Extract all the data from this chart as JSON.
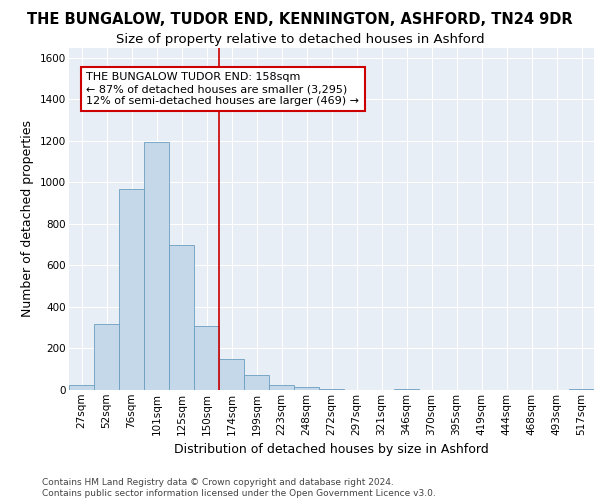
{
  "title_line1": "THE BUNGALOW, TUDOR END, KENNINGTON, ASHFORD, TN24 9DR",
  "title_line2": "Size of property relative to detached houses in Ashford",
  "xlabel": "Distribution of detached houses by size in Ashford",
  "ylabel": "Number of detached properties",
  "categories": [
    "27sqm",
    "52sqm",
    "76sqm",
    "101sqm",
    "125sqm",
    "150sqm",
    "174sqm",
    "199sqm",
    "223sqm",
    "248sqm",
    "272sqm",
    "297sqm",
    "321sqm",
    "346sqm",
    "370sqm",
    "395sqm",
    "419sqm",
    "444sqm",
    "468sqm",
    "493sqm",
    "517sqm"
  ],
  "values": [
    25,
    320,
    970,
    1195,
    700,
    310,
    150,
    70,
    25,
    15,
    5,
    0,
    0,
    5,
    0,
    0,
    0,
    0,
    0,
    0,
    5
  ],
  "bar_color": "#c5d8ea",
  "bar_edge_color": "#6b9ec0",
  "vline_x_index": 5.5,
  "vline_color": "#cc0000",
  "annotation_text": "THE BUNGALOW TUDOR END: 158sqm\n← 87% of detached houses are smaller (3,295)\n12% of semi-detached houses are larger (469) →",
  "annotation_box_color": "white",
  "annotation_box_edge_color": "#cc0000",
  "ylim": [
    0,
    1650
  ],
  "yticks": [
    0,
    200,
    400,
    600,
    800,
    1000,
    1200,
    1400,
    1600
  ],
  "background_color": "#e8eef5",
  "grid_color": "white",
  "footer_text": "Contains HM Land Registry data © Crown copyright and database right 2024.\nContains public sector information licensed under the Open Government Licence v3.0.",
  "title_fontsize": 10.5,
  "subtitle_fontsize": 9.5,
  "axis_label_fontsize": 9,
  "tick_fontsize": 7.5,
  "annotation_fontsize": 8,
  "footer_fontsize": 6.5
}
